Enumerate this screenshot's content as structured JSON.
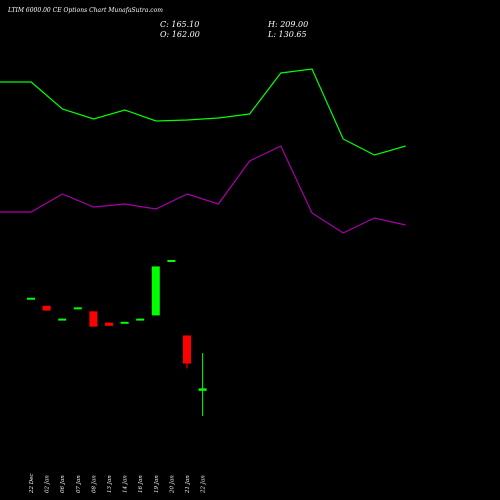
{
  "header": {
    "title": "LTIM 6000.00  CE Options  Chart MunafaSutra.com",
    "close_label": "C: 165.10",
    "open_label": "O: 162.00",
    "high_label": "H: 209.00",
    "low_label": "L: 130.65"
  },
  "chart_data": {
    "type": "candlestick",
    "title": "LTIM 6000.00  CE Options  Chart MunafaSutra.com",
    "x_labels": [
      "22 Dec",
      "02 Jan",
      "06 Jan",
      "07 Jan",
      "08 Jan",
      "13 Jan",
      "14 Jan",
      "16 Jan",
      "19 Jan",
      "20 Jan",
      "21 Jan",
      "22 Jan"
    ],
    "candles": [
      {
        "date": "22 Dec",
        "open": 277,
        "close": 278,
        "high": 278,
        "low": 277,
        "color": "green"
      },
      {
        "date": "02 Jan",
        "open": 268,
        "close": 262,
        "high": 268,
        "low": 262,
        "color": "red"
      },
      {
        "date": "06 Jan",
        "open": 251,
        "close": 252,
        "high": 252,
        "low": 251,
        "color": "green"
      },
      {
        "date": "07 Jan",
        "open": 265,
        "close": 266,
        "high": 266,
        "low": 265,
        "color": "green"
      },
      {
        "date": "08 Jan",
        "open": 261,
        "close": 242,
        "high": 261,
        "low": 242,
        "color": "red"
      },
      {
        "date": "13 Jan",
        "open": 247,
        "close": 243,
        "high": 247,
        "low": 243,
        "color": "red"
      },
      {
        "date": "14 Jan",
        "open": 247,
        "close": 248,
        "high": 248,
        "low": 247,
        "color": "green"
      },
      {
        "date": "16 Jan",
        "open": 251,
        "close": 252,
        "high": 252,
        "low": 251,
        "color": "green"
      },
      {
        "date": "19 Jan",
        "open": 256,
        "close": 317,
        "high": 317,
        "low": 256,
        "color": "green"
      },
      {
        "date": "20 Jan",
        "open": 324,
        "close": 325,
        "high": 325,
        "low": 324,
        "color": "green"
      },
      {
        "date": "21 Jan",
        "open": 231,
        "close": 196,
        "high": 231,
        "low": 190,
        "color": "red"
      },
      {
        "date": "22 Jan",
        "open": 162,
        "close": 165.1,
        "high": 209,
        "low": 130.65,
        "color": "green"
      }
    ],
    "overlay_lines": [
      {
        "color": "#00ff00",
        "values": [
          82,
          82,
          109,
          119,
          110,
          121,
          120,
          118,
          114,
          73,
          69,
          139,
          155,
          146
        ]
      },
      {
        "color": "#aa00aa",
        "values": [
          212,
          212,
          194,
          207,
          204,
          209,
          194,
          204,
          161,
          146,
          213,
          233,
          218,
          225
        ]
      }
    ],
    "colors": {
      "background": "#000000",
      "up": "#00ff00",
      "down": "#ff0000",
      "text": "#ffffff"
    }
  }
}
